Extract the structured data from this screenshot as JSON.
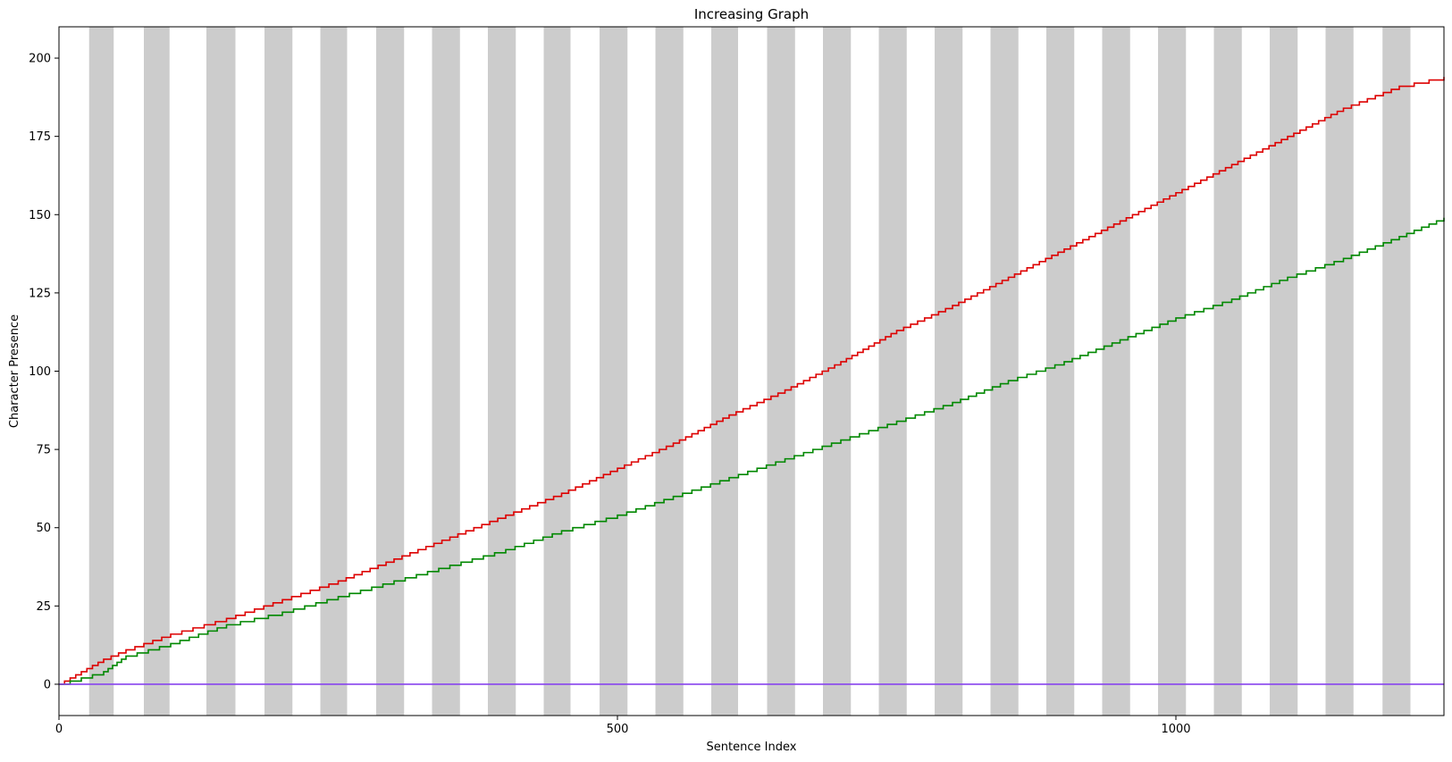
{
  "chart_data": {
    "type": "line",
    "title": "Increasing Graph",
    "xlabel": "Sentence Index",
    "ylabel": "Character Presence",
    "xlim": [
      0,
      1240
    ],
    "ylim": [
      -10,
      210
    ],
    "xticks": [
      0,
      500,
      1000
    ],
    "yticks": [
      0,
      25,
      50,
      75,
      100,
      125,
      150,
      175,
      200
    ],
    "grid": false,
    "legend": null,
    "background_bands": {
      "color": "#cccccc",
      "ranges": [
        [
          27,
          49
        ],
        [
          76,
          99
        ],
        [
          132,
          158
        ],
        [
          184,
          209
        ],
        [
          234,
          258
        ],
        [
          284,
          309
        ],
        [
          334,
          359
        ],
        [
          384,
          409
        ],
        [
          434,
          458
        ],
        [
          484,
          509
        ],
        [
          534,
          559
        ],
        [
          584,
          608
        ],
        [
          634,
          659
        ],
        [
          684,
          709
        ],
        [
          734,
          759
        ],
        [
          784,
          809
        ],
        [
          834,
          859
        ],
        [
          884,
          909
        ],
        [
          934,
          959
        ],
        [
          984,
          1009
        ],
        [
          1034,
          1059
        ],
        [
          1084,
          1109
        ],
        [
          1134,
          1159
        ],
        [
          1185,
          1210
        ]
      ]
    },
    "series": [
      {
        "color": "#dd0000",
        "step": true,
        "points": [
          [
            0,
            0
          ],
          [
            10,
            2
          ],
          [
            20,
            4
          ],
          [
            40,
            8
          ],
          [
            60,
            11
          ],
          [
            100,
            16
          ],
          [
            150,
            21
          ],
          [
            200,
            27
          ],
          [
            250,
            33
          ],
          [
            300,
            40
          ],
          [
            350,
            47
          ],
          [
            400,
            54
          ],
          [
            450,
            61
          ],
          [
            500,
            69
          ],
          [
            550,
            77
          ],
          [
            600,
            86
          ],
          [
            650,
            94
          ],
          [
            700,
            103
          ],
          [
            750,
            113
          ],
          [
            800,
            121
          ],
          [
            850,
            130
          ],
          [
            900,
            139
          ],
          [
            950,
            148
          ],
          [
            1000,
            157
          ],
          [
            1050,
            166
          ],
          [
            1100,
            175
          ],
          [
            1150,
            184
          ],
          [
            1200,
            191
          ],
          [
            1240,
            194
          ]
        ]
      },
      {
        "color": "#008800",
        "step": true,
        "points": [
          [
            0,
            0
          ],
          [
            10,
            1
          ],
          [
            20,
            2
          ],
          [
            40,
            4
          ],
          [
            60,
            9
          ],
          [
            100,
            13
          ],
          [
            150,
            19
          ],
          [
            200,
            23
          ],
          [
            250,
            28
          ],
          [
            300,
            33
          ],
          [
            350,
            38
          ],
          [
            400,
            43
          ],
          [
            450,
            49
          ],
          [
            500,
            54
          ],
          [
            550,
            60
          ],
          [
            600,
            66
          ],
          [
            650,
            72
          ],
          [
            700,
            78
          ],
          [
            750,
            84
          ],
          [
            800,
            90
          ],
          [
            850,
            97
          ],
          [
            900,
            103
          ],
          [
            950,
            110
          ],
          [
            1000,
            117
          ],
          [
            1050,
            123
          ],
          [
            1100,
            130
          ],
          [
            1150,
            136
          ],
          [
            1200,
            143
          ],
          [
            1240,
            149
          ]
        ]
      },
      {
        "color": "#8844ee",
        "step": false,
        "points": [
          [
            0,
            0
          ],
          [
            1240,
            0
          ]
        ]
      }
    ]
  }
}
